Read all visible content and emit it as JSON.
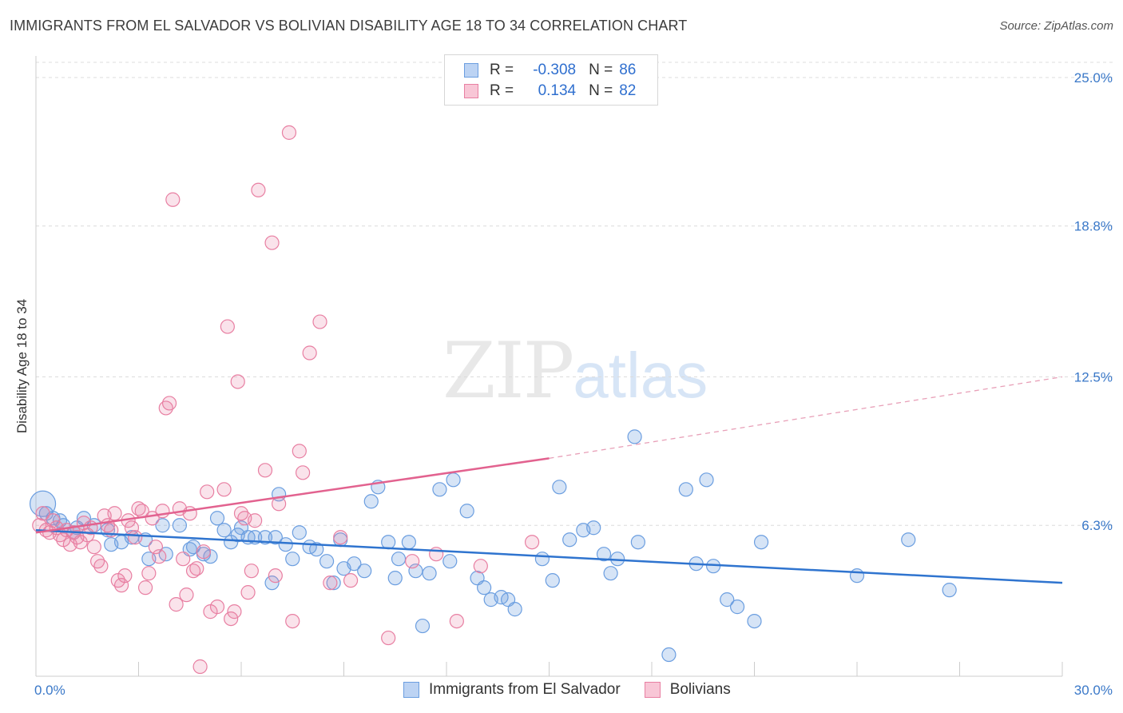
{
  "title": "IMMIGRANTS FROM EL SALVADOR VS BOLIVIAN DISABILITY AGE 18 TO 34 CORRELATION CHART",
  "source": "Source: ZipAtlas.com",
  "watermark": {
    "zip": "ZIP",
    "atlas": "atlas"
  },
  "legend": {
    "r_label": "R =",
    "n_label": "N =",
    "rows": [
      {
        "r": "-0.308",
        "n": "86",
        "color": "#6b9ee0"
      },
      {
        "r": "0.134",
        "n": "82",
        "color": "#e87fa2"
      }
    ]
  },
  "bottom_legend": [
    "Immigrants from El Salvador",
    "Bolivians"
  ],
  "colors": {
    "blue": "#6b9ee0",
    "pink": "#e87fa2",
    "blue_line": "#2f74cf",
    "pink_line": "#e2628f",
    "tick": "#3a78c8"
  },
  "chart_data": {
    "type": "scatter",
    "title": "IMMIGRANTS FROM EL SALVADOR VS BOLIVIAN DISABILITY AGE 18 TO 34 CORRELATION CHART",
    "xlabel": "",
    "ylabel": "Disability Age 18 to 34",
    "xlim": [
      0,
      30
    ],
    "ylim": [
      0,
      25.9
    ],
    "x_tick_labels": [
      "0.0%",
      "30.0%"
    ],
    "y_ticks": [
      6.3,
      12.5,
      18.8,
      25.0
    ],
    "y_tick_labels": [
      "6.3%",
      "12.5%",
      "18.8%",
      "25.0%"
    ],
    "grid": true,
    "legend_position": "top-center",
    "series": [
      {
        "name": "Immigrants from El Salvador",
        "color": "#6b9ee0",
        "trend": {
          "x": [
            0,
            30
          ],
          "y": [
            6.1,
            3.9
          ]
        },
        "points": [
          [
            0.2,
            7.2
          ],
          [
            0.3,
            6.8
          ],
          [
            0.5,
            6.6
          ],
          [
            0.7,
            6.5
          ],
          [
            0.8,
            6.3
          ],
          [
            1.1,
            6.0
          ],
          [
            1.2,
            6.2
          ],
          [
            1.4,
            6.6
          ],
          [
            1.7,
            6.3
          ],
          [
            2.1,
            6.1
          ],
          [
            2.2,
            5.5
          ],
          [
            2.5,
            5.6
          ],
          [
            2.8,
            5.8
          ],
          [
            3.2,
            5.7
          ],
          [
            3.3,
            4.9
          ],
          [
            3.7,
            6.3
          ],
          [
            3.8,
            5.1
          ],
          [
            4.2,
            6.3
          ],
          [
            4.5,
            5.3
          ],
          [
            4.6,
            5.4
          ],
          [
            4.9,
            5.1
          ],
          [
            5.1,
            5.0
          ],
          [
            5.3,
            6.6
          ],
          [
            5.5,
            6.1
          ],
          [
            5.7,
            5.6
          ],
          [
            5.9,
            5.9
          ],
          [
            6.0,
            6.2
          ],
          [
            6.2,
            5.8
          ],
          [
            6.4,
            5.8
          ],
          [
            6.7,
            5.8
          ],
          [
            6.9,
            3.9
          ],
          [
            7.0,
            5.8
          ],
          [
            7.1,
            7.6
          ],
          [
            7.3,
            5.5
          ],
          [
            7.5,
            4.9
          ],
          [
            7.7,
            6.0
          ],
          [
            8.0,
            5.4
          ],
          [
            8.2,
            5.3
          ],
          [
            8.5,
            4.8
          ],
          [
            8.7,
            3.9
          ],
          [
            8.9,
            5.7
          ],
          [
            9.0,
            4.5
          ],
          [
            9.3,
            4.7
          ],
          [
            9.6,
            4.4
          ],
          [
            9.8,
            7.3
          ],
          [
            10.0,
            7.9
          ],
          [
            10.3,
            5.6
          ],
          [
            10.5,
            4.1
          ],
          [
            10.6,
            4.9
          ],
          [
            10.9,
            5.6
          ],
          [
            11.1,
            4.4
          ],
          [
            11.3,
            2.1
          ],
          [
            11.5,
            4.3
          ],
          [
            11.8,
            7.8
          ],
          [
            12.1,
            4.8
          ],
          [
            12.2,
            8.2
          ],
          [
            12.6,
            6.9
          ],
          [
            12.9,
            4.1
          ],
          [
            13.1,
            3.7
          ],
          [
            13.3,
            3.2
          ],
          [
            13.6,
            3.3
          ],
          [
            13.8,
            3.2
          ],
          [
            14.0,
            2.8
          ],
          [
            14.8,
            4.9
          ],
          [
            15.1,
            4.0
          ],
          [
            15.3,
            7.9
          ],
          [
            15.6,
            5.7
          ],
          [
            16.0,
            6.1
          ],
          [
            16.3,
            6.2
          ],
          [
            16.6,
            5.1
          ],
          [
            16.8,
            4.3
          ],
          [
            17.0,
            4.9
          ],
          [
            17.5,
            10.0
          ],
          [
            17.6,
            5.6
          ],
          [
            18.5,
            0.9
          ],
          [
            19.0,
            7.8
          ],
          [
            19.3,
            4.7
          ],
          [
            19.6,
            8.2
          ],
          [
            19.8,
            4.6
          ],
          [
            20.2,
            3.2
          ],
          [
            20.5,
            2.9
          ],
          [
            21.0,
            2.3
          ],
          [
            21.2,
            5.6
          ],
          [
            24.0,
            4.2
          ],
          [
            25.5,
            5.7
          ],
          [
            26.7,
            3.6
          ]
        ]
      },
      {
        "name": "Bolivians",
        "color": "#e87fa2",
        "trend": {
          "x": [
            0,
            15
          ],
          "y": [
            6.0,
            9.1
          ]
        },
        "trend_dashed": {
          "x": [
            15,
            30
          ],
          "y": [
            9.1,
            12.5
          ]
        },
        "points": [
          [
            0.1,
            6.3
          ],
          [
            0.2,
            6.8
          ],
          [
            0.3,
            6.1
          ],
          [
            0.4,
            6.0
          ],
          [
            0.5,
            6.5
          ],
          [
            0.6,
            6.2
          ],
          [
            0.7,
            5.9
          ],
          [
            0.8,
            5.7
          ],
          [
            0.9,
            6.1
          ],
          [
            1.0,
            5.5
          ],
          [
            1.1,
            6.0
          ],
          [
            1.2,
            5.8
          ],
          [
            1.3,
            5.6
          ],
          [
            1.4,
            6.4
          ],
          [
            1.5,
            5.9
          ],
          [
            1.6,
            6.2
          ],
          [
            1.7,
            5.4
          ],
          [
            1.8,
            4.8
          ],
          [
            1.9,
            4.6
          ],
          [
            2.0,
            6.7
          ],
          [
            2.1,
            6.3
          ],
          [
            2.2,
            6.1
          ],
          [
            2.3,
            6.8
          ],
          [
            2.4,
            4.0
          ],
          [
            2.5,
            3.8
          ],
          [
            2.6,
            4.2
          ],
          [
            2.7,
            6.5
          ],
          [
            2.8,
            6.2
          ],
          [
            2.9,
            5.8
          ],
          [
            3.0,
            7.0
          ],
          [
            3.1,
            6.9
          ],
          [
            3.2,
            3.7
          ],
          [
            3.3,
            4.3
          ],
          [
            3.4,
            6.6
          ],
          [
            3.5,
            5.4
          ],
          [
            3.6,
            5.0
          ],
          [
            3.7,
            6.9
          ],
          [
            3.8,
            11.2
          ],
          [
            3.9,
            11.4
          ],
          [
            4.0,
            19.9
          ],
          [
            4.1,
            3.0
          ],
          [
            4.2,
            7.0
          ],
          [
            4.3,
            4.9
          ],
          [
            4.4,
            3.4
          ],
          [
            4.5,
            6.8
          ],
          [
            4.6,
            4.4
          ],
          [
            4.7,
            4.5
          ],
          [
            4.8,
            0.4
          ],
          [
            4.9,
            5.2
          ],
          [
            5.0,
            7.7
          ],
          [
            5.1,
            2.7
          ],
          [
            5.3,
            2.9
          ],
          [
            5.5,
            7.8
          ],
          [
            5.6,
            14.6
          ],
          [
            5.7,
            2.4
          ],
          [
            5.8,
            2.7
          ],
          [
            5.9,
            12.3
          ],
          [
            6.0,
            6.8
          ],
          [
            6.1,
            6.6
          ],
          [
            6.2,
            3.5
          ],
          [
            6.3,
            4.4
          ],
          [
            6.4,
            6.5
          ],
          [
            6.5,
            20.3
          ],
          [
            6.7,
            8.6
          ],
          [
            6.9,
            18.1
          ],
          [
            7.0,
            4.2
          ],
          [
            7.1,
            7.2
          ],
          [
            7.4,
            22.7
          ],
          [
            7.5,
            2.3
          ],
          [
            7.7,
            9.4
          ],
          [
            7.8,
            8.5
          ],
          [
            8.0,
            13.5
          ],
          [
            8.3,
            14.8
          ],
          [
            8.6,
            3.9
          ],
          [
            8.9,
            5.8
          ],
          [
            9.2,
            4.0
          ],
          [
            10.3,
            1.6
          ],
          [
            11.0,
            4.8
          ],
          [
            13.0,
            4.6
          ],
          [
            14.5,
            5.6
          ],
          [
            12.3,
            2.3
          ],
          [
            11.7,
            5.1
          ]
        ]
      }
    ]
  }
}
